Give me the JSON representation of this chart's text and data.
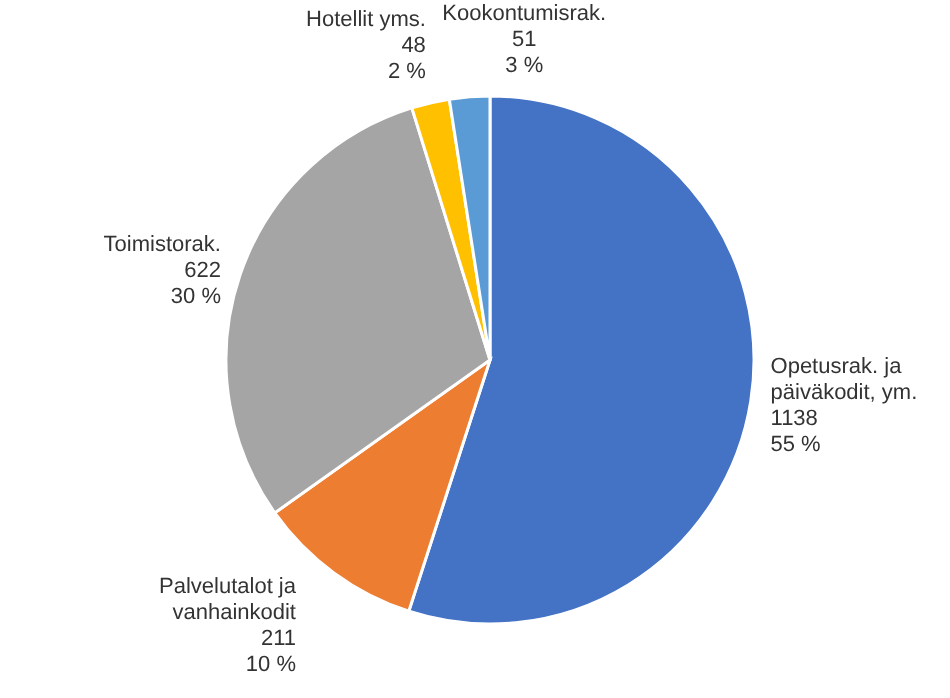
{
  "chart_data": {
    "type": "pie",
    "categories": [
      "Opetusrak. ja päiväkodit, ym.",
      "Palvelutalot ja vanhainkodit",
      "Toimistorak.",
      "Hotellit yms.",
      "Kookontumisrak."
    ],
    "values": [
      1138,
      211,
      622,
      48,
      51
    ],
    "colors": [
      "#4472c4",
      "#ed7d31",
      "#a5a5a5",
      "#ffc000",
      "#5b9bd5"
    ],
    "value_labels": [
      "1138\n55 %",
      "211\n10 %",
      "622\n30 %",
      "48\n2 %",
      "51\n3 %"
    ]
  }
}
